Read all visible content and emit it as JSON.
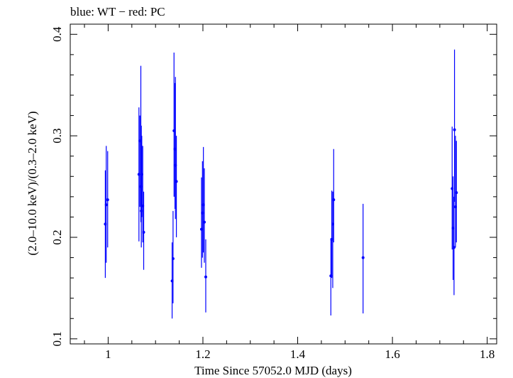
{
  "chart_data": {
    "type": "scatter",
    "title": "blue: WT − red: PC",
    "xlabel": "Time Since 57052.0 MJD (days)",
    "ylabel": "(2.0–10.0 keV)/(0.3–2.0 keV)",
    "xlim": [
      0.92,
      1.82
    ],
    "ylim": [
      0.095,
      0.41
    ],
    "x_ticks": [
      1,
      1.2,
      1.4,
      1.6,
      1.8
    ],
    "x_tick_labels": [
      "1",
      "1.2",
      "1.4",
      "1.6",
      "1.8"
    ],
    "y_ticks": [
      0.1,
      0.2,
      0.3,
      0.4
    ],
    "y_tick_labels": [
      "0.1",
      "0.2",
      "0.3",
      "0.4"
    ],
    "series": [
      {
        "name": "WT",
        "color": "#0000ff",
        "points": [
          {
            "x": 0.994,
            "y": 0.213,
            "lo": 0.16,
            "hi": 0.266
          },
          {
            "x": 0.996,
            "y": 0.232,
            "lo": 0.175,
            "hi": 0.29
          },
          {
            "x": 0.999,
            "y": 0.237,
            "lo": 0.19,
            "hi": 0.285
          },
          {
            "x": 1.065,
            "y": 0.262,
            "lo": 0.196,
            "hi": 0.328
          },
          {
            "x": 1.067,
            "y": 0.295,
            "lo": 0.23,
            "hi": 0.32
          },
          {
            "x": 1.069,
            "y": 0.25,
            "lo": 0.215,
            "hi": 0.369
          },
          {
            "x": 1.07,
            "y": 0.226,
            "lo": 0.19,
            "hi": 0.31
          },
          {
            "x": 1.071,
            "y": 0.262,
            "lo": 0.22,
            "hi": 0.3
          },
          {
            "x": 1.073,
            "y": 0.231,
            "lo": 0.195,
            "hi": 0.29
          },
          {
            "x": 1.075,
            "y": 0.205,
            "lo": 0.168,
            "hi": 0.245
          },
          {
            "x": 1.135,
            "y": 0.157,
            "lo": 0.12,
            "hi": 0.195
          },
          {
            "x": 1.137,
            "y": 0.179,
            "lo": 0.135,
            "hi": 0.226
          },
          {
            "x": 1.139,
            "y": 0.305,
            "lo": 0.24,
            "hi": 0.382
          },
          {
            "x": 1.141,
            "y": 0.287,
            "lo": 0.228,
            "hi": 0.352
          },
          {
            "x": 1.142,
            "y": 0.271,
            "lo": 0.218,
            "hi": 0.358
          },
          {
            "x": 1.144,
            "y": 0.255,
            "lo": 0.2,
            "hi": 0.3
          },
          {
            "x": 1.197,
            "y": 0.208,
            "lo": 0.17,
            "hi": 0.259
          },
          {
            "x": 1.199,
            "y": 0.224,
            "lo": 0.18,
            "hi": 0.275
          },
          {
            "x": 1.201,
            "y": 0.232,
            "lo": 0.185,
            "hi": 0.289
          },
          {
            "x": 1.203,
            "y": 0.215,
            "lo": 0.175,
            "hi": 0.268
          },
          {
            "x": 1.206,
            "y": 0.161,
            "lo": 0.126,
            "hi": 0.198
          },
          {
            "x": 1.47,
            "y": 0.162,
            "lo": 0.123,
            "hi": 0.199
          },
          {
            "x": 1.472,
            "y": 0.198,
            "lo": 0.16,
            "hi": 0.246
          },
          {
            "x": 1.474,
            "y": 0.213,
            "lo": 0.15,
            "hi": 0.245
          },
          {
            "x": 1.476,
            "y": 0.237,
            "lo": 0.195,
            "hi": 0.287
          },
          {
            "x": 1.538,
            "y": 0.18,
            "lo": 0.125,
            "hi": 0.233
          },
          {
            "x": 1.726,
            "y": 0.248,
            "lo": 0.188,
            "hi": 0.309
          },
          {
            "x": 1.728,
            "y": 0.209,
            "lo": 0.158,
            "hi": 0.26
          },
          {
            "x": 1.73,
            "y": 0.19,
            "lo": 0.143,
            "hi": 0.24
          },
          {
            "x": 1.731,
            "y": 0.306,
            "lo": 0.235,
            "hi": 0.385
          },
          {
            "x": 1.733,
            "y": 0.23,
            "lo": 0.19,
            "hi": 0.3
          },
          {
            "x": 1.735,
            "y": 0.244,
            "lo": 0.195,
            "hi": 0.295
          }
        ]
      }
    ]
  }
}
